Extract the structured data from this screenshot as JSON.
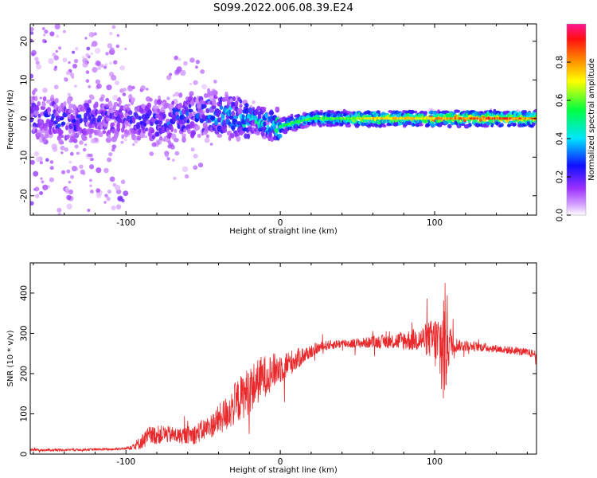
{
  "page": {
    "title": "S099.2022.006.08.39.E24"
  },
  "chart_data": [
    {
      "type": "heatmap",
      "title": "S099.2022.006.08.39.E24",
      "xlabel": "Height of straight line (km)",
      "ylabel": "Frequency (Hz)",
      "xlim": [
        -162,
        166
      ],
      "ylim": [
        -25,
        24.5
      ],
      "x_ticks": [
        -100,
        0,
        100
      ],
      "y_ticks": [
        -20,
        -10,
        0,
        10,
        20
      ],
      "x_tick_labels": [
        "-100",
        "0",
        "100"
      ],
      "y_tick_labels": [
        "-20",
        "-10",
        "0",
        "10",
        "20"
      ],
      "colorbar": {
        "label": "Normalized spectral amplitude",
        "range": [
          0,
          1
        ],
        "ticks": [
          0.0,
          0.2,
          0.4,
          0.6,
          0.8
        ],
        "tick_labels": [
          "0.0",
          "0.2",
          "0.4",
          "0.6",
          "0.8"
        ],
        "colormap": [
          "#ffffff",
          "#9b30ff",
          "#0000ff",
          "#00ffff",
          "#00ff00",
          "#ffff00",
          "#ff8000",
          "#ff0000",
          "#ff1493"
        ]
      },
      "ridge_center_hz": [
        {
          "x": -160,
          "y": 1
        },
        {
          "x": -140,
          "y": -1
        },
        {
          "x": -120,
          "y": 0
        },
        {
          "x": -100,
          "y": 0
        },
        {
          "x": -80,
          "y": -1
        },
        {
          "x": -60,
          "y": 1
        },
        {
          "x": -40,
          "y": 1
        },
        {
          "x": -20,
          "y": 0
        },
        {
          "x": 0,
          "y": -2
        },
        {
          "x": 20,
          "y": 0
        },
        {
          "x": 50,
          "y": 0
        },
        {
          "x": 80,
          "y": 0
        },
        {
          "x": 100,
          "y": 0
        },
        {
          "x": 130,
          "y": 0
        },
        {
          "x": 166,
          "y": 0
        }
      ],
      "ridge_amplitude": [
        {
          "x": -162,
          "y": 0.3
        },
        {
          "x": -100,
          "y": 0.25
        },
        {
          "x": -60,
          "y": 0.35
        },
        {
          "x": -30,
          "y": 0.45
        },
        {
          "x": -10,
          "y": 0.5
        },
        {
          "x": 10,
          "y": 0.6
        },
        {
          "x": 40,
          "y": 0.6
        },
        {
          "x": 60,
          "y": 0.8
        },
        {
          "x": 90,
          "y": 0.75
        },
        {
          "x": 110,
          "y": 0.85
        },
        {
          "x": 140,
          "y": 0.9
        },
        {
          "x": 166,
          "y": 0.85
        }
      ]
    },
    {
      "type": "line",
      "xlabel": "Height of straight line (km)",
      "ylabel": "SNR (10 * v/v)",
      "xlim": [
        -162,
        166
      ],
      "ylim": [
        0,
        475
      ],
      "x_ticks": [
        -100,
        0,
        100
      ],
      "y_ticks": [
        0,
        100,
        200,
        300,
        400
      ],
      "x_tick_labels": [
        "-100",
        "0",
        "100"
      ],
      "y_tick_labels": [
        "0",
        "100",
        "200",
        "300",
        "400"
      ],
      "color": "#e8282b",
      "series": [
        {
          "x": [
            -162,
            -150,
            -130,
            -110,
            -100,
            -92,
            -85,
            -75,
            -65,
            -55,
            -45,
            -35,
            -28,
            -20,
            -12,
            -5,
            0,
            8,
            15,
            22,
            30,
            40,
            50,
            60,
            70,
            80,
            90,
            98,
            103,
            106,
            108,
            110,
            115,
            125,
            140,
            155,
            166
          ],
          "y": [
            10,
            10,
            11,
            12,
            14,
            25,
            45,
            50,
            45,
            50,
            70,
            100,
            130,
            160,
            190,
            205,
            215,
            230,
            245,
            260,
            270,
            275,
            275,
            278,
            280,
            282,
            285,
            285,
            270,
            260,
            290,
            280,
            270,
            268,
            262,
            255,
            248
          ],
          "noise_amplitude": [
            3,
            3,
            3,
            3,
            3,
            15,
            25,
            22,
            20,
            25,
            30,
            45,
            55,
            60,
            55,
            45,
            40,
            30,
            22,
            15,
            12,
            12,
            12,
            15,
            18,
            25,
            30,
            50,
            90,
            180,
            120,
            40,
            15,
            12,
            10,
            10,
            10
          ]
        }
      ]
    }
  ]
}
